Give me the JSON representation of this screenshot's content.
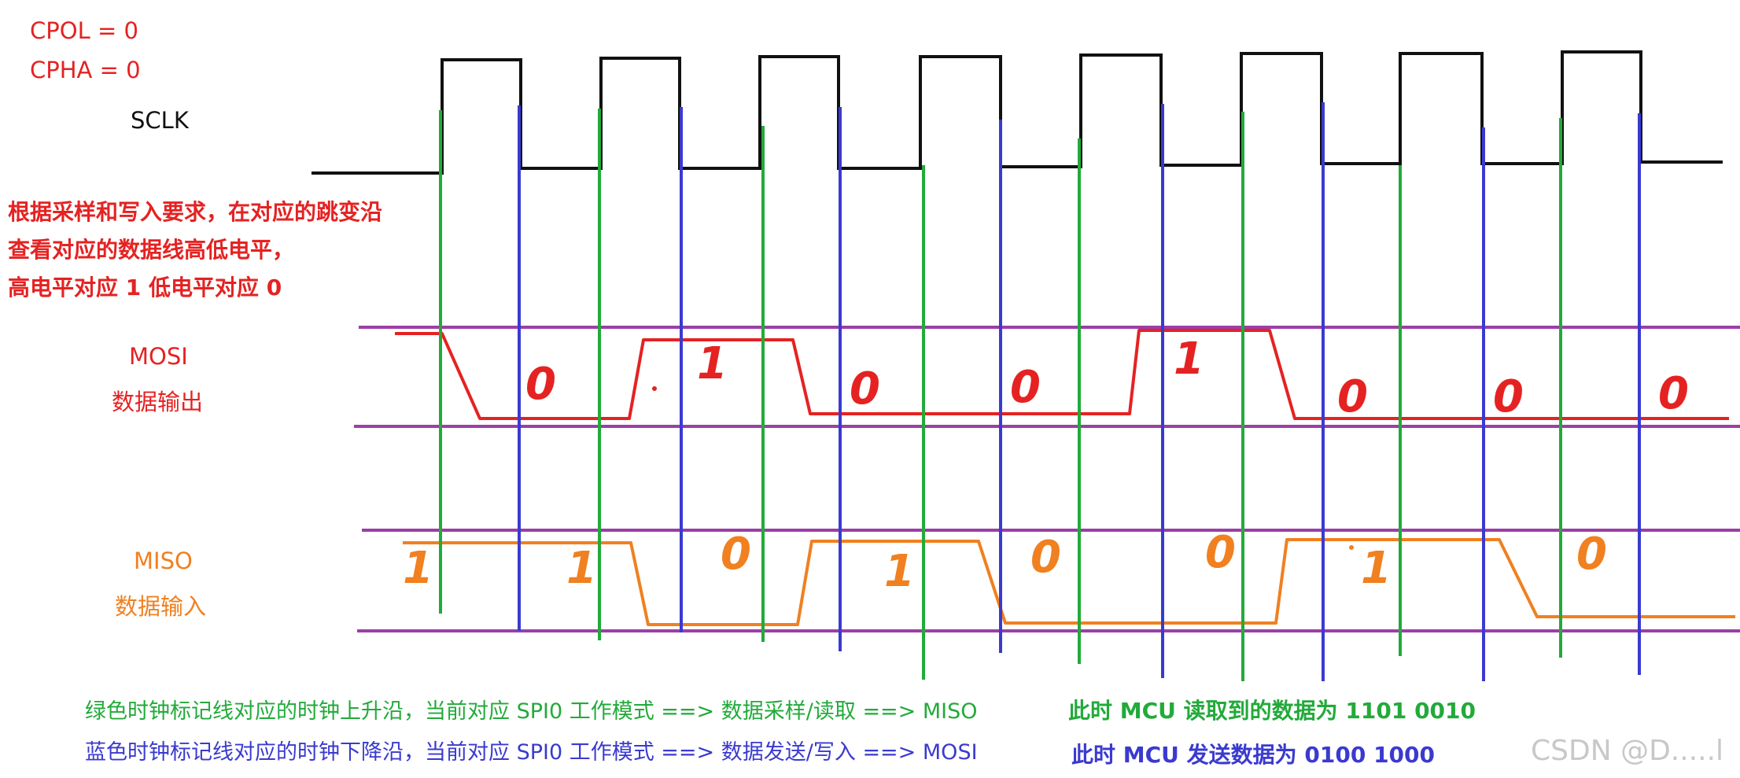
{
  "params": {
    "cpol": "CPOL = 0",
    "cpha": "CPHA = 0"
  },
  "signals": {
    "sclk": "SCLK",
    "mosi": {
      "name": "MOSI",
      "desc": "数据输出"
    },
    "miso": {
      "name": "MISO",
      "desc": "数据输入"
    }
  },
  "note": {
    "line1": "根据采样和写入要求，在对应的跳变沿",
    "line2": "查看对应的数据线高低电平，",
    "line3": "高电平对应 1 低电平对应 0"
  },
  "mosi_bits": [
    "0",
    "1",
    "0",
    "0",
    "1",
    "0",
    "0",
    "0"
  ],
  "miso_bits": [
    "1",
    "1",
    "0",
    "1",
    "0",
    "0",
    "1",
    "0"
  ],
  "legend": {
    "green_line": "绿色时钟标记线对应的时钟上升沿，当前对应 SPI0 工作模式 ==> 数据采样/读取 ==> MISO",
    "blue_line": "蓝色时钟标记线对应的时钟下降沿，当前对应 SPI0 工作模式 ==> 数据发送/写入 ==> MOSI",
    "green_result": "此时 MCU 读取到的数据为 1101 0010",
    "blue_result": "此时 MCU 发送数据为 0100 1000"
  },
  "watermark": "CSDN @D.....l",
  "colors": {
    "clock": "#111111",
    "mosi": "#e52222",
    "miso": "#f08020",
    "rail": "#9b3fa6",
    "rising_marker": "#22aa3a",
    "falling_marker": "#3a3ad0"
  }
}
